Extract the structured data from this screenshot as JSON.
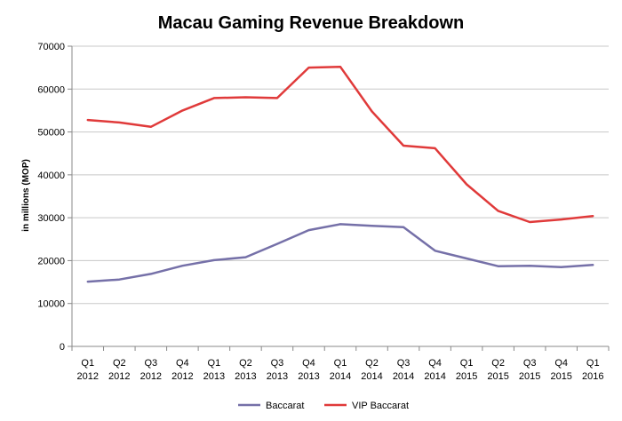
{
  "chart_data": {
    "type": "line",
    "title": "Macau Gaming Revenue Breakdown",
    "xlabel": "",
    "ylabel": "in millions (MOP)",
    "ylim": [
      0,
      70000
    ],
    "yticks": [
      "0",
      "10000",
      "20000",
      "30000",
      "40000",
      "50000",
      "60000",
      "70000"
    ],
    "categories": [
      {
        "q": "Q1",
        "y": "2012"
      },
      {
        "q": "Q2",
        "y": "2012"
      },
      {
        "q": "Q3",
        "y": "2012"
      },
      {
        "q": "Q4",
        "y": "2012"
      },
      {
        "q": "Q1",
        "y": "2013"
      },
      {
        "q": "Q2",
        "y": "2013"
      },
      {
        "q": "Q3",
        "y": "2013"
      },
      {
        "q": "Q4",
        "y": "2013"
      },
      {
        "q": "Q1",
        "y": "2014"
      },
      {
        "q": "Q2",
        "y": "2014"
      },
      {
        "q": "Q3",
        "y": "2014"
      },
      {
        "q": "Q4",
        "y": "2014"
      },
      {
        "q": "Q1",
        "y": "2015"
      },
      {
        "q": "Q2",
        "y": "2015"
      },
      {
        "q": "Q3",
        "y": "2015"
      },
      {
        "q": "Q4",
        "y": "2015"
      },
      {
        "q": "Q1",
        "y": "2016"
      }
    ],
    "grid": true,
    "legend_position": "bottom",
    "series": [
      {
        "name": "Baccarat",
        "color": "#7570a8",
        "values": [
          15100,
          15600,
          16900,
          18800,
          20100,
          20800,
          23900,
          27100,
          28500,
          28100,
          27800,
          22300,
          20500,
          18700,
          18800,
          18500,
          19000
        ]
      },
      {
        "name": "VIP Baccarat",
        "color": "#e03a3a",
        "values": [
          52800,
          52200,
          51200,
          55000,
          57900,
          58100,
          57900,
          65000,
          65200,
          54800,
          46800,
          46200,
          37800,
          31600,
          29000,
          29600,
          30400
        ]
      }
    ]
  }
}
